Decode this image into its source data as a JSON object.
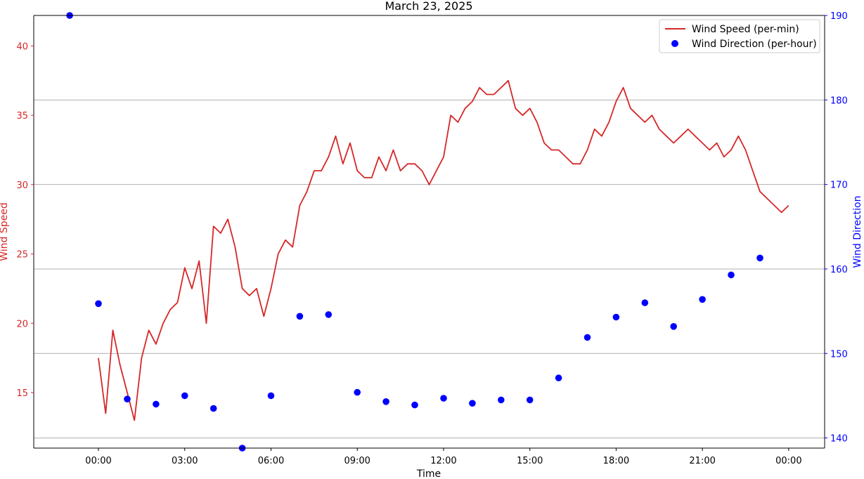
{
  "chart_data": {
    "type": "line",
    "title": "March 23, 2025",
    "xlabel": "Time",
    "ylabel_left": "Wind Speed",
    "ylabel_right": "Wind Direction",
    "x_ticks": [
      "00:00",
      "03:00",
      "06:00",
      "09:00",
      "12:00",
      "15:00",
      "18:00",
      "21:00",
      "00:00"
    ],
    "y_left_ticks": [
      15,
      20,
      25,
      30,
      35,
      40
    ],
    "y_right_ticks": [
      140,
      150,
      160,
      170,
      180,
      190
    ],
    "xlim_hours": [
      -2.25,
      25.25
    ],
    "ylim_left": [
      11.0,
      42.2
    ],
    "ylim_right": [
      138.8,
      190.0
    ],
    "grid": "horizontal lines at right-axis ticks",
    "legend_position": "top-right",
    "colors": {
      "speed": "#d62728",
      "direction": "#0000ff",
      "left_axis_text": "#d62728",
      "right_axis_text": "#0000ff",
      "grid": "#b0b0b0"
    },
    "series": [
      {
        "name": "Wind Speed (per-min)",
        "axis": "left",
        "style": "line",
        "x": [
          0.0,
          0.25,
          0.5,
          0.75,
          1.0,
          1.25,
          1.5,
          1.75,
          2.0,
          2.25,
          2.5,
          2.75,
          3.0,
          3.25,
          3.5,
          3.75,
          4.0,
          4.25,
          4.5,
          4.75,
          5.0,
          5.25,
          5.5,
          5.75,
          6.0,
          6.25,
          6.5,
          6.75,
          7.0,
          7.25,
          7.5,
          7.75,
          8.0,
          8.25,
          8.5,
          8.75,
          9.0,
          9.25,
          9.5,
          9.75,
          10.0,
          10.25,
          10.5,
          10.75,
          11.0,
          11.25,
          11.5,
          11.75,
          12.0,
          12.25,
          12.5,
          12.75,
          13.0,
          13.25,
          13.5,
          13.75,
          14.0,
          14.25,
          14.5,
          14.75,
          15.0,
          15.25,
          15.5,
          15.75,
          16.0,
          16.25,
          16.5,
          16.75,
          17.0,
          17.25,
          17.5,
          17.75,
          18.0,
          18.25,
          18.5,
          18.75,
          19.0,
          19.25,
          19.5,
          19.75,
          20.0,
          20.25,
          20.5,
          20.75,
          21.0,
          21.25,
          21.5,
          21.75,
          22.0,
          22.25,
          22.5,
          22.75,
          23.0,
          23.25,
          23.5,
          23.75,
          24.0
        ],
        "y": [
          17.5,
          13.5,
          19.5,
          17.0,
          15.0,
          13.0,
          17.5,
          19.5,
          18.5,
          20.0,
          21.0,
          21.5,
          24.0,
          22.5,
          24.5,
          20.0,
          27.0,
          26.5,
          27.5,
          25.5,
          22.5,
          22.0,
          22.5,
          20.5,
          22.5,
          25.0,
          26.0,
          25.5,
          28.5,
          29.5,
          31.0,
          31.0,
          32.0,
          33.5,
          31.5,
          33.0,
          31.0,
          30.5,
          30.5,
          32.0,
          31.0,
          32.5,
          31.0,
          31.5,
          31.5,
          31.0,
          30.0,
          31.0,
          32.0,
          35.0,
          34.5,
          35.5,
          36.0,
          37.0,
          36.5,
          36.5,
          37.0,
          37.5,
          35.5,
          35.0,
          35.5,
          34.5,
          33.0,
          32.5,
          32.5,
          32.0,
          31.5,
          31.5,
          32.5,
          34.0,
          33.5,
          34.5,
          36.0,
          37.0,
          35.5,
          35.0,
          34.5,
          35.0,
          34.0,
          33.5,
          33.0,
          33.5,
          34.0,
          33.5,
          33.0,
          32.5,
          33.0,
          32.0,
          32.5,
          33.5,
          32.5,
          31.0,
          29.5,
          29.0,
          28.5,
          28.0,
          28.5
        ]
      },
      {
        "name": "Wind Direction (per-hour)",
        "axis": "right",
        "style": "markers",
        "x": [
          -1,
          0,
          1,
          2,
          3,
          4,
          5,
          6,
          7,
          8,
          9,
          10,
          11,
          12,
          13,
          14,
          15,
          16,
          17,
          18,
          19,
          20,
          21,
          22,
          23
        ],
        "y": [
          190.0,
          155.9,
          144.6,
          144.0,
          145.0,
          143.5,
          138.8,
          145.0,
          154.4,
          154.6,
          145.4,
          144.3,
          143.9,
          144.7,
          144.1,
          144.5,
          144.5,
          147.1,
          151.9,
          154.3,
          156.0,
          153.2,
          156.4,
          159.3,
          161.3
        ]
      }
    ]
  }
}
